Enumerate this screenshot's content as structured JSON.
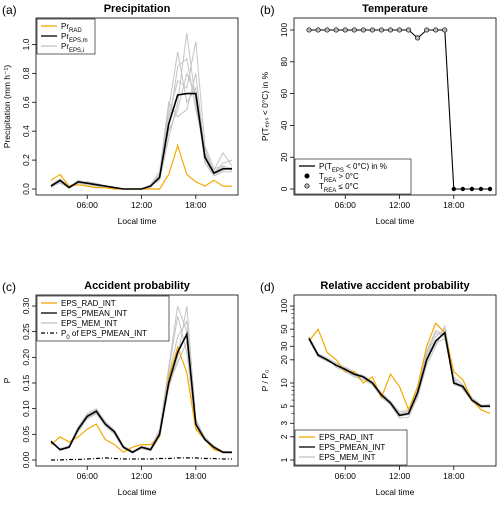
{
  "chart_data": [
    {
      "panel_label": "(a)",
      "type": "line",
      "title": "Precipitation",
      "xlabel": "Local time",
      "ylabel": "Precipitation (mm h⁻¹)",
      "xlim": [
        1,
        22
      ],
      "ylim": [
        0,
        1.1
      ],
      "xticks": [
        6,
        12,
        18
      ],
      "xtick_labels": [
        "06:00",
        "12:00",
        "18:00"
      ],
      "yticks": [
        0,
        0.2,
        0.4,
        0.6,
        0.8,
        1.0
      ],
      "ytick_labels": [
        "0.0",
        "0.2",
        "0.4",
        "0.6",
        "0.8",
        "1.0"
      ],
      "legend_position": "top-left",
      "x": [
        2,
        3,
        4,
        5,
        6,
        7,
        8,
        9,
        10,
        11,
        12,
        13,
        14,
        15,
        16,
        17,
        18,
        19,
        20,
        21,
        22
      ],
      "series": [
        {
          "name": "Pr",
          "sub": "RAD",
          "color": "#f5a800",
          "values": [
            0.06,
            0.1,
            0.02,
            0.03,
            0.02,
            0.01,
            0.01,
            0.0,
            0.0,
            0.0,
            0.0,
            0.0,
            0.0,
            0.1,
            0.3,
            0.1,
            0.05,
            0.02,
            0.06,
            0.02,
            0.02
          ]
        },
        {
          "name": "Pr",
          "sub": "EPS,m",
          "color": "#000000",
          "values": [
            0.02,
            0.06,
            0.01,
            0.05,
            0.04,
            0.03,
            0.02,
            0.01,
            0.0,
            0.0,
            0.0,
            0.02,
            0.08,
            0.45,
            0.65,
            0.66,
            0.66,
            0.22,
            0.11,
            0.14,
            0.14
          ]
        },
        {
          "name": "Pr",
          "sub": "EPS,i",
          "color": "#c4c4c4",
          "ensemble": [
            [
              0.02,
              0.04,
              0.01,
              0.06,
              0.04,
              0.03,
              0.02,
              0.01,
              0.0,
              0.0,
              0.0,
              0.03,
              0.1,
              0.55,
              0.95,
              0.6,
              0.7,
              0.25,
              0.12,
              0.15,
              0.13
            ],
            [
              0.03,
              0.07,
              0.02,
              0.05,
              0.05,
              0.04,
              0.02,
              0.01,
              0.0,
              0.0,
              0.0,
              0.02,
              0.06,
              0.35,
              0.6,
              1.08,
              0.6,
              0.2,
              0.1,
              0.13,
              0.15
            ],
            [
              0.02,
              0.05,
              0.01,
              0.04,
              0.03,
              0.02,
              0.01,
              0.0,
              0.0,
              0.0,
              0.0,
              0.01,
              0.09,
              0.5,
              0.75,
              0.7,
              1.02,
              0.3,
              0.14,
              0.16,
              0.14
            ],
            [
              0.02,
              0.06,
              0.02,
              0.05,
              0.04,
              0.03,
              0.02,
              0.01,
              0.0,
              0.0,
              0.0,
              0.02,
              0.07,
              0.4,
              0.55,
              0.8,
              0.65,
              0.18,
              0.09,
              0.12,
              0.12
            ],
            [
              0.01,
              0.05,
              0.01,
              0.05,
              0.04,
              0.02,
              0.01,
              0.01,
              0.0,
              0.0,
              0.0,
              0.03,
              0.12,
              0.6,
              0.5,
              0.55,
              0.8,
              0.24,
              0.13,
              0.25,
              0.16
            ],
            [
              0.02,
              0.06,
              0.02,
              0.04,
              0.04,
              0.03,
              0.02,
              0.01,
              0.0,
              0.0,
              0.0,
              0.02,
              0.08,
              0.42,
              0.85,
              0.9,
              0.55,
              0.28,
              0.11,
              0.18,
              0.2
            ]
          ]
        }
      ]
    },
    {
      "panel_label": "(b)",
      "type": "line",
      "title": "Temperature",
      "xlabel": "Local time",
      "ylabel": "P(Tₑₚₛ < 0°C) in %",
      "xlim": [
        1,
        22
      ],
      "ylim": [
        0,
        100
      ],
      "xticks": [
        6,
        12,
        18
      ],
      "xtick_labels": [
        "06:00",
        "12:00",
        "18:00"
      ],
      "yticks": [
        0,
        20,
        40,
        60,
        80,
        100
      ],
      "ytick_labels": [
        "0",
        "20",
        "40",
        "60",
        "80",
        "100"
      ],
      "legend_position": "bottom-left",
      "x": [
        2,
        3,
        4,
        5,
        6,
        7,
        8,
        9,
        10,
        11,
        12,
        13,
        14,
        15,
        16,
        17,
        18,
        19,
        20,
        21,
        22
      ],
      "series": [
        {
          "name": "P(T",
          "sub": "EPS",
          "suffix": " < 0°C) in %",
          "values": [
            100,
            100,
            100,
            100,
            100,
            100,
            100,
            100,
            100,
            100,
            100,
            100,
            95,
            100,
            100,
            100,
            0,
            0,
            0,
            0,
            0
          ]
        },
        {
          "name": "T",
          "sub": "REA",
          "suffix": " > 0°C",
          "marker": "filled",
          "x": [
            18,
            19,
            20,
            21,
            22
          ]
        },
        {
          "name": "T",
          "sub": "REA",
          "suffix": " ≤ 0°C",
          "marker": "open",
          "x": [
            2,
            3,
            4,
            5,
            6,
            7,
            8,
            9,
            10,
            11,
            12,
            13,
            14,
            15,
            16,
            17
          ]
        }
      ]
    },
    {
      "panel_label": "(c)",
      "type": "line",
      "title": "Accident probability",
      "xlabel": "Local time",
      "ylabel": "P",
      "xlim": [
        1,
        22
      ],
      "ylim": [
        0,
        0.3
      ],
      "xticks": [
        6,
        12,
        18
      ],
      "xtick_labels": [
        "06:00",
        "12:00",
        "18:00"
      ],
      "yticks": [
        0,
        0.05,
        0.1,
        0.15,
        0.2,
        0.25,
        0.3
      ],
      "ytick_labels": [
        "0.00",
        "0.05",
        "0.10",
        "0.15",
        "0.20",
        "0.25",
        "0.30"
      ],
      "legend_position": "top-left",
      "x": [
        2,
        3,
        4,
        5,
        6,
        7,
        8,
        9,
        10,
        11,
        12,
        13,
        14,
        15,
        16,
        17,
        18,
        19,
        20,
        21,
        22
      ],
      "series": [
        {
          "name": "EPS_RAD_INT",
          "color": "#f5a800",
          "values": [
            0.03,
            0.045,
            0.035,
            0.045,
            0.06,
            0.07,
            0.04,
            0.03,
            0.015,
            0.025,
            0.03,
            0.03,
            0.045,
            0.16,
            0.22,
            0.17,
            0.06,
            0.04,
            0.02,
            0.015,
            0.015
          ]
        },
        {
          "name": "EPS_PMEAN_INT",
          "color": "#000000",
          "values": [
            0.036,
            0.02,
            0.025,
            0.06,
            0.085,
            0.095,
            0.07,
            0.055,
            0.025,
            0.015,
            0.025,
            0.02,
            0.05,
            0.15,
            0.21,
            0.245,
            0.07,
            0.04,
            0.025,
            0.015,
            0.015
          ]
        },
        {
          "name": "EPS_MEM_INT",
          "color": "#c4c4c4",
          "ensemble": [
            [
              0.034,
              0.022,
              0.028,
              0.065,
              0.09,
              0.1,
              0.075,
              0.058,
              0.028,
              0.017,
              0.027,
              0.023,
              0.06,
              0.175,
              0.28,
              0.21,
              0.06,
              0.038,
              0.022,
              0.015,
              0.014
            ],
            [
              0.037,
              0.019,
              0.024,
              0.055,
              0.08,
              0.09,
              0.066,
              0.05,
              0.022,
              0.014,
              0.022,
              0.018,
              0.045,
              0.14,
              0.2,
              0.3,
              0.08,
              0.042,
              0.027,
              0.017,
              0.016
            ],
            [
              0.035,
              0.021,
              0.026,
              0.062,
              0.086,
              0.097,
              0.072,
              0.056,
              0.026,
              0.016,
              0.026,
              0.021,
              0.055,
              0.165,
              0.24,
              0.27,
              0.065,
              0.04,
              0.024,
              0.015,
              0.015
            ],
            [
              0.036,
              0.02,
              0.025,
              0.058,
              0.083,
              0.092,
              0.068,
              0.053,
              0.024,
              0.015,
              0.024,
              0.02,
              0.048,
              0.145,
              0.19,
              0.23,
              0.075,
              0.045,
              0.026,
              0.016,
              0.015
            ],
            [
              0.038,
              0.021,
              0.027,
              0.061,
              0.088,
              0.094,
              0.071,
              0.057,
              0.025,
              0.016,
              0.025,
              0.022,
              0.058,
              0.18,
              0.3,
              0.25,
              0.068,
              0.039,
              0.023,
              0.014,
              0.014
            ]
          ]
        },
        {
          "name": "P",
          "sub": "0",
          "suffix": " of EPS_PMEAN_INT",
          "color": "#000000",
          "dash": "dotdash",
          "values": [
            0.0,
            0.0,
            0.001,
            0.001,
            0.002,
            0.003,
            0.004,
            0.003,
            0.002,
            0.002,
            0.002,
            0.002,
            0.003,
            0.003,
            0.004,
            0.004,
            0.004,
            0.003,
            0.003,
            0.002,
            0.002
          ]
        }
      ]
    },
    {
      "panel_label": "(d)",
      "type": "line",
      "title": "Relative accident probability",
      "xlabel": "Local time",
      "ylabel": "P / P₀",
      "xlim": [
        1,
        22
      ],
      "ylim": [
        1,
        100
      ],
      "yscale": "log",
      "xticks": [
        6,
        12,
        18
      ],
      "xtick_labels": [
        "06:00",
        "12:00",
        "18:00"
      ],
      "yticks": [
        1,
        2,
        3,
        5,
        10,
        20,
        30,
        50,
        100
      ],
      "ytick_labels": [
        "1",
        "2",
        "3",
        "5",
        "10",
        "20",
        "30",
        "50",
        "100"
      ],
      "legend_position": "bottom-left",
      "x": [
        2,
        3,
        4,
        5,
        6,
        7,
        8,
        9,
        10,
        11,
        12,
        13,
        14,
        15,
        16,
        17,
        18,
        19,
        20,
        21,
        22
      ],
      "series": [
        {
          "name": "EPS_RAD_INT",
          "color": "#f5a800",
          "values": [
            35,
            50,
            25,
            20,
            14,
            14,
            10,
            12,
            6.5,
            13,
            9,
            4.5,
            9,
            30,
            60,
            45,
            14,
            11,
            6,
            4.5,
            4
          ]
        },
        {
          "name": "EPS_PMEAN_INT",
          "color": "#000000",
          "values": [
            38,
            23,
            20,
            17,
            15,
            13,
            12,
            10,
            7,
            5.5,
            3.8,
            4.0,
            7.5,
            20,
            35,
            45,
            10,
            9,
            6,
            5,
            5
          ]
        },
        {
          "name": "EPS_MEM_INT",
          "color": "#c4c4c4",
          "ensemble": [
            [
              36,
              22,
              19,
              18,
              16,
              14,
              12,
              10,
              7.5,
              5.8,
              4.2,
              4.5,
              8.5,
              24,
              45,
              40,
              11,
              8.5,
              6,
              5,
              5.2
            ],
            [
              40,
              24,
              21,
              16,
              14,
              12,
              11,
              9.5,
              6.5,
              5.2,
              3.5,
              3.6,
              6.5,
              17,
              30,
              55,
              12,
              9.5,
              6.5,
              5.2,
              4.8
            ],
            [
              37,
              23,
              20,
              17,
              15.5,
              13.5,
              12.5,
              10.5,
              7.2,
              5.6,
              3.9,
              4.2,
              8.0,
              22,
              40,
              50,
              9.5,
              8.8,
              5.8,
              4.9,
              5.0
            ],
            [
              39,
              22,
              20,
              17,
              14.5,
              12.5,
              11.5,
              9.8,
              6.8,
              5.4,
              3.7,
              3.9,
              7.0,
              19,
              33,
              38,
              10.5,
              9.2,
              6.2,
              5.1,
              5.3
            ],
            [
              38,
              24,
              21,
              18,
              15,
              13,
              12,
              10,
              7.0,
              5.5,
              4.0,
              4.3,
              9.0,
              26,
              48,
              42,
              11.5,
              8.2,
              5.9,
              4.8,
              4.9
            ]
          ]
        }
      ]
    }
  ]
}
